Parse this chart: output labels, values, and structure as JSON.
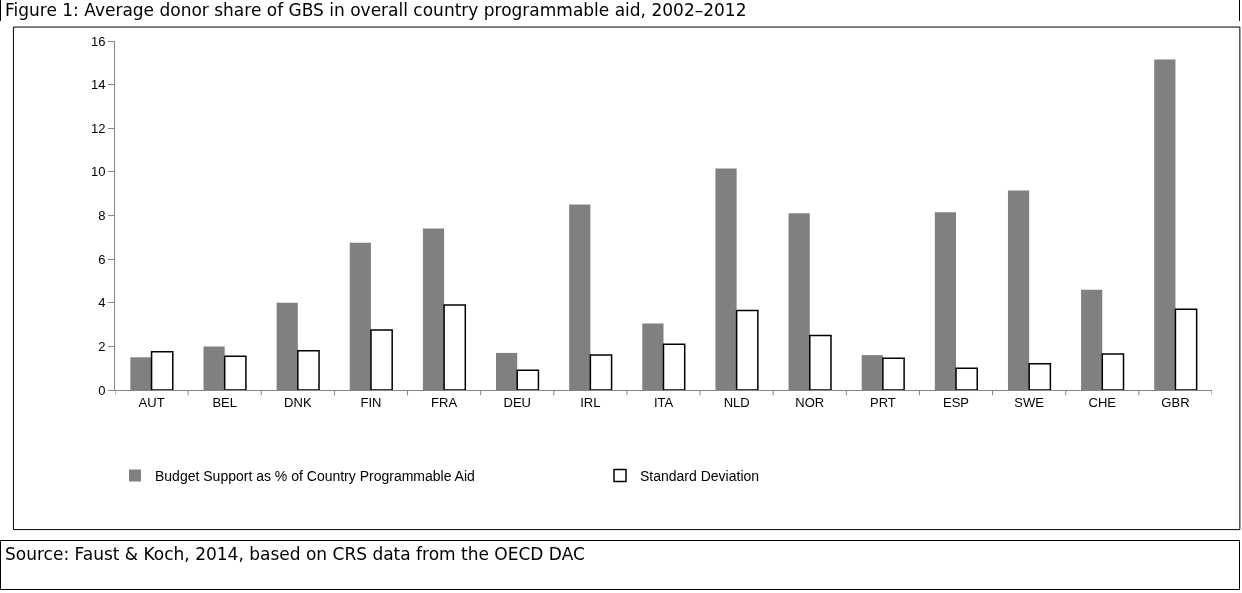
{
  "chart_data": {
    "type": "bar",
    "title": "Figure 1:     Average donor share of GBS in overall country programmable aid, 2002–2012",
    "categories": [
      "AUT",
      "BEL",
      "DNK",
      "FIN",
      "FRA",
      "DEU",
      "IRL",
      "ITA",
      "NLD",
      "NOR",
      "PRT",
      "ESP",
      "SWE",
      "CHE",
      "GBR"
    ],
    "series": [
      {
        "name": "Budget Support as % of Country Programmable Aid",
        "color": "#808080",
        "values": [
          1.5,
          2.0,
          4.0,
          6.75,
          7.4,
          1.7,
          8.5,
          3.05,
          10.15,
          8.1,
          1.6,
          8.15,
          9.15,
          4.6,
          15.15
        ]
      },
      {
        "name": "Standard Deviation",
        "color": "#ffffff",
        "values": [
          1.75,
          1.55,
          1.8,
          2.75,
          3.9,
          0.9,
          1.6,
          2.1,
          3.65,
          2.5,
          1.45,
          1.0,
          1.2,
          1.65,
          3.7
        ]
      }
    ],
    "ylim": [
      0,
      16
    ],
    "yticks": [
      0,
      2,
      4,
      6,
      8,
      10,
      12,
      14,
      16
    ],
    "grid": false,
    "legend": "bottom left",
    "annotations": [
      "Source:  Faust & Koch, 2014, based on CRS data from the OECD DAC"
    ]
  }
}
